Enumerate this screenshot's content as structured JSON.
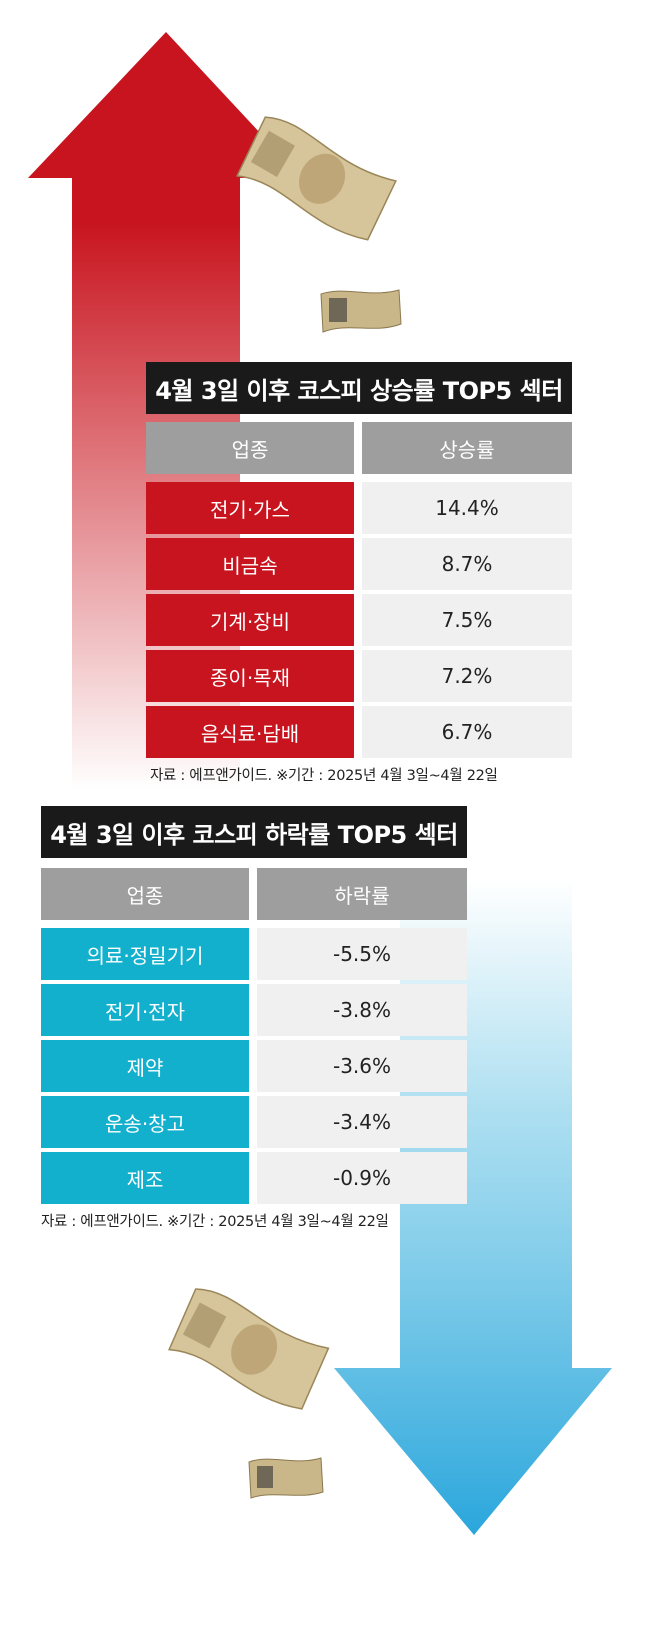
{
  "colors": {
    "up_accent": "#c8141e",
    "down_accent": "#12b0cd",
    "header_gray": "#9e9e9e",
    "title_bg": "#1a1a1a",
    "value_bg": "#f0f0f0"
  },
  "chart_data": [
    {
      "type": "table",
      "title": "4월 3일 이후 코스피 상승률 TOP5 섹터",
      "columns": [
        "업종",
        "상승률"
      ],
      "rows": [
        {
          "sector": "전기·가스",
          "value": "14.4%"
        },
        {
          "sector": "비금속",
          "value": "8.7%"
        },
        {
          "sector": "기계·장비",
          "value": "7.5%"
        },
        {
          "sector": "종이·목재",
          "value": "7.2%"
        },
        {
          "sector": "음식료·담배",
          "value": "6.7%"
        }
      ],
      "source": "자료 : 에프앤가이드. ※기간 : 2025년 4월 3일~4월 22일"
    },
    {
      "type": "table",
      "title": "4월 3일 이후 코스피 하락률 TOP5 섹터",
      "columns": [
        "업종",
        "하락률"
      ],
      "rows": [
        {
          "sector": "의료·정밀기기",
          "value": "-5.5%"
        },
        {
          "sector": "전기·전자",
          "value": "-3.8%"
        },
        {
          "sector": "제약",
          "value": "-3.6%"
        },
        {
          "sector": "운송·창고",
          "value": "-3.4%"
        },
        {
          "sector": "제조",
          "value": "-0.9%"
        }
      ],
      "source": "자료 : 에프앤가이드. ※기간 : 2025년 4월 3일~4월 22일"
    }
  ]
}
